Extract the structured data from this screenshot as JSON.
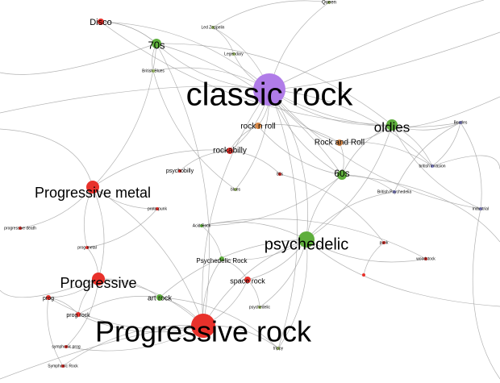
{
  "colors": {
    "red": "#e8312b",
    "green": "#5eae3c",
    "purple": "#b07ce8",
    "orange": "#d98a4a",
    "lightgreen": "#a8c870",
    "blue": "#8a8ad8",
    "edge": "#9a9a9a"
  },
  "nodes": [
    {
      "id": "classic-rock",
      "label": "classic rock",
      "color": "purple",
      "size": 20,
      "font": 40
    },
    {
      "id": "progressive-rock",
      "label": "Progressive rock",
      "color": "red",
      "size": 15,
      "font": 36
    },
    {
      "id": "psychedelic",
      "label": "psychedelic",
      "color": "green",
      "size": 10,
      "font": 20
    },
    {
      "id": "progressive-metal",
      "label": "Progressive metal",
      "color": "red",
      "size": 8,
      "font": 18
    },
    {
      "id": "progressive",
      "label": "Progressive",
      "color": "red",
      "size": 8,
      "font": 18
    },
    {
      "id": "oldies",
      "label": "oldies",
      "color": "green",
      "size": 7,
      "font": 17
    },
    {
      "id": "70s",
      "label": "70s",
      "color": "green",
      "size": 6,
      "font": 13
    },
    {
      "id": "60s",
      "label": "60s",
      "color": "green",
      "size": 6,
      "font": 12
    },
    {
      "id": "disco",
      "label": "Disco",
      "color": "red",
      "size": 4,
      "font": 11
    },
    {
      "id": "rock-n-roll",
      "label": "rock n roll",
      "color": "orange",
      "size": 4,
      "font": 10
    },
    {
      "id": "rock-and-roll",
      "label": "Rock and Roll",
      "color": "orange",
      "size": 4,
      "font": 10
    },
    {
      "id": "rockabilly",
      "label": "rockabilly",
      "color": "red",
      "size": 4,
      "font": 10
    },
    {
      "id": "space-rock",
      "label": "space rock",
      "color": "red",
      "size": 4,
      "font": 9
    },
    {
      "id": "art-rock",
      "label": "art rock",
      "color": "green",
      "size": 4,
      "font": 9
    },
    {
      "id": "psychedelic-rock",
      "label": "Psychedelic Rock",
      "color": "green",
      "size": 3,
      "font": 8
    },
    {
      "id": "prog-rock",
      "label": "prog rock",
      "color": "red",
      "size": 3,
      "font": 7
    },
    {
      "id": "prog",
      "label": "prog",
      "color": "red",
      "size": 3,
      "font": 7
    },
    {
      "id": "psychobilly",
      "label": "psychobilly",
      "color": "red",
      "size": 2,
      "font": 7
    },
    {
      "id": "queen",
      "label": "Queen",
      "color": "lightgreen",
      "size": 2,
      "font": 6
    },
    {
      "id": "led-zeppelin",
      "label": "Led Zeppelin",
      "color": "lightgreen",
      "size": 2,
      "font": 5
    },
    {
      "id": "legendary",
      "label": "Legendary",
      "color": "lightgreen",
      "size": 2,
      "font": 5
    },
    {
      "id": "british-blues",
      "label": "British Blues",
      "color": "lightgreen",
      "size": 2,
      "font": 5
    },
    {
      "id": "rockabilly-2",
      "label": "80s",
      "color": "red",
      "size": 2,
      "font": 5
    },
    {
      "id": "blues",
      "label": "blues",
      "color": "lightgreen",
      "size": 2,
      "font": 5
    },
    {
      "id": "british-psychedelia",
      "label": "British Psychedelia",
      "color": "blue",
      "size": 2,
      "font": 5
    },
    {
      "id": "british-invasion",
      "label": "british invasion",
      "color": "blue",
      "size": 2,
      "font": 5
    },
    {
      "id": "beatles",
      "label": "Beatles",
      "color": "blue",
      "size": 2,
      "font": 5
    },
    {
      "id": "industrial",
      "label": "industrial",
      "color": "blue",
      "size": 2,
      "font": 5
    },
    {
      "id": "punk",
      "label": "punk",
      "color": "red",
      "size": 2,
      "font": 5
    },
    {
      "id": "woodstock",
      "label": "woodstock",
      "color": "red",
      "size": 2,
      "font": 5
    },
    {
      "id": "acid-rock",
      "label": "Acid Rock",
      "color": "green",
      "size": 2,
      "font": 5
    },
    {
      "id": "proto-punk",
      "label": "proto-punk",
      "color": "red",
      "size": 2,
      "font": 5
    },
    {
      "id": "progressive-death",
      "label": "progressive death",
      "color": "red",
      "size": 2,
      "font": 5
    },
    {
      "id": "prog-metal",
      "label": "prog metal",
      "color": "red",
      "size": 2,
      "font": 5
    },
    {
      "id": "psychedelic-2",
      "label": "psychedelic",
      "color": "lightgreen",
      "size": 2,
      "font": 5
    },
    {
      "id": "trippy",
      "label": "trippy",
      "color": "lightgreen",
      "size": 2,
      "font": 5
    },
    {
      "id": "symphonic-prog",
      "label": "symphonic prog",
      "color": "red",
      "size": 2,
      "font": 5
    },
    {
      "id": "symphonic-rock",
      "label": "Symphonic Rock",
      "color": "red",
      "size": 2,
      "font": 5
    },
    {
      "id": "mini-red",
      "label": "",
      "color": "red",
      "size": 2,
      "font": 5
    }
  ],
  "edges": [
    [
      "classic-rock",
      "oldies"
    ],
    [
      "classic-rock",
      "70s"
    ],
    [
      "classic-rock",
      "60s"
    ],
    [
      "classic-rock",
      "rock-n-roll"
    ],
    [
      "classic-rock",
      "rock-and-roll"
    ],
    [
      "classic-rock",
      "psychedelic"
    ],
    [
      "classic-rock",
      "progressive-rock"
    ],
    [
      "classic-rock",
      "queen"
    ],
    [
      "classic-rock",
      "led-zeppelin"
    ],
    [
      "classic-rock",
      "legendary"
    ],
    [
      "classic-rock",
      "british-blues"
    ],
    [
      "classic-rock",
      "blues"
    ],
    [
      "classic-rock",
      "beatles"
    ],
    [
      "classic-rock",
      "british-invasion"
    ],
    [
      "classic-rock",
      "disco"
    ],
    [
      "classic-rock",
      "rockabilly"
    ],
    [
      "classic-rock",
      "industrial"
    ],
    [
      "classic-rock",
      "trippy"
    ],
    [
      "oldies",
      "60s"
    ],
    [
      "oldies",
      "rock-and-roll"
    ],
    [
      "oldies",
      "beatles"
    ],
    [
      "oldies",
      "british-invasion"
    ],
    [
      "oldies",
      "70s"
    ],
    [
      "oldies",
      "disco"
    ],
    [
      "oldies",
      "industrial"
    ],
    [
      "oldies",
      "psychedelic"
    ],
    [
      "60s",
      "psychedelic"
    ],
    [
      "60s",
      "british-psychedelia"
    ],
    [
      "60s",
      "rock-and-roll"
    ],
    [
      "60s",
      "rock-n-roll"
    ],
    [
      "60s",
      "70s"
    ],
    [
      "60s",
      "acid-rock"
    ],
    [
      "70s",
      "disco"
    ],
    [
      "70s",
      "progressive-rock"
    ],
    [
      "70s",
      "british-blues"
    ],
    [
      "70s",
      "progressive-metal"
    ],
    [
      "rock-n-roll",
      "rockabilly"
    ],
    [
      "rock-n-roll",
      "rock-and-roll"
    ],
    [
      "rockabilly",
      "psychobilly"
    ],
    [
      "rockabilly",
      "rockabilly-2"
    ],
    [
      "rockabilly",
      "progressive-metal"
    ],
    [
      "psychedelic",
      "psychedelic-rock"
    ],
    [
      "psychedelic",
      "acid-rock"
    ],
    [
      "psychedelic",
      "space-rock"
    ],
    [
      "psychedelic",
      "progressive-rock"
    ],
    [
      "psychedelic",
      "psychedelic-2"
    ],
    [
      "psychedelic",
      "woodstock"
    ],
    [
      "psychedelic",
      "trippy"
    ],
    [
      "psychedelic",
      "art-rock"
    ],
    [
      "psychedelic",
      "british-psychedelia"
    ],
    [
      "progressive-rock",
      "progressive"
    ],
    [
      "progressive-rock",
      "prog-rock"
    ],
    [
      "progressive-rock",
      "art-rock"
    ],
    [
      "progressive-rock",
      "prog"
    ],
    [
      "progressive-rock",
      "space-rock"
    ],
    [
      "progressive-rock",
      "symphonic-prog"
    ],
    [
      "progressive-rock",
      "symphonic-rock"
    ],
    [
      "progressive-rock",
      "psychedelic-rock"
    ],
    [
      "progressive-rock",
      "progressive-metal"
    ],
    [
      "progressive-rock",
      "trippy"
    ],
    [
      "progressive",
      "progressive-metal"
    ],
    [
      "progressive",
      "prog"
    ],
    [
      "progressive",
      "prog-rock"
    ],
    [
      "progressive",
      "art-rock"
    ],
    [
      "progressive",
      "prog-metal"
    ],
    [
      "progressive",
      "symphonic-prog"
    ],
    [
      "progressive-metal",
      "prog-metal"
    ],
    [
      "progressive-metal",
      "progressive-death"
    ],
    [
      "progressive-metal",
      "proto-punk"
    ],
    [
      "prog",
      "prog-rock"
    ],
    [
      "prog",
      "symphonic-rock"
    ],
    [
      "prog-rock",
      "art-rock"
    ],
    [
      "space-rock",
      "psychedelic-rock"
    ],
    [
      "space-rock",
      "psychedelic-2"
    ],
    [
      "psychedelic-rock",
      "acid-rock"
    ],
    [
      "rockabilly-2",
      "punk"
    ],
    [
      "punk",
      "mini-red"
    ],
    [
      "rock-and-roll",
      "british-invasion"
    ],
    [
      "british-invasion",
      "beatles"
    ],
    [
      "british-psychedelia",
      "beatles"
    ],
    [
      "industrial",
      "beatles"
    ],
    [
      "led-zeppelin",
      "queen"
    ],
    [
      "legendary",
      "led-zeppelin"
    ],
    [
      "blues",
      "british-blues"
    ],
    [
      "woodstock",
      "acid-rock"
    ],
    [
      "disco",
      "70s"
    ],
    [
      "trippy",
      "art-rock"
    ],
    [
      "proto-punk",
      "prog-metal"
    ]
  ]
}
